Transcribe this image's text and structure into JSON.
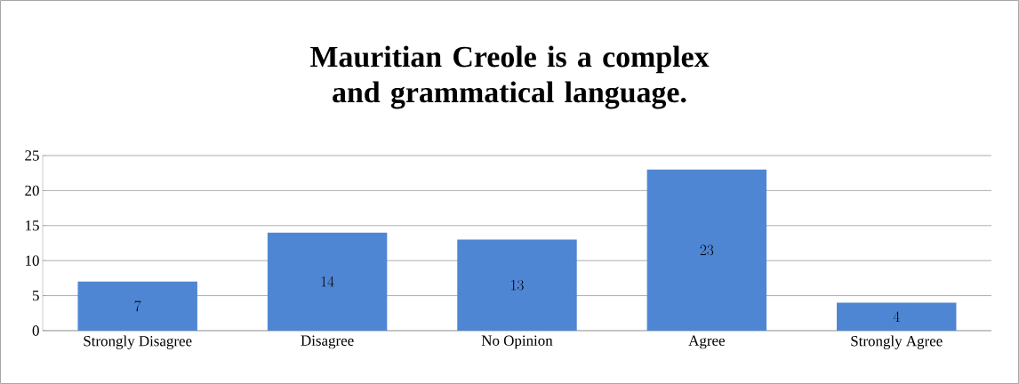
{
  "chart_data": {
    "type": "bar",
    "title": "Mauritian Creole is a complex and grammatical language.",
    "categories": [
      "Strongly Disagree",
      "Disagree",
      "No Opinion",
      "Agree",
      "Strongly Agree"
    ],
    "values": [
      7,
      14,
      13,
      23,
      4
    ],
    "color": "#4f86d4",
    "ylim": [
      0,
      25
    ],
    "yticks": [
      0,
      5,
      10,
      15,
      20,
      25
    ],
    "grid": "y",
    "data_labels": true
  }
}
